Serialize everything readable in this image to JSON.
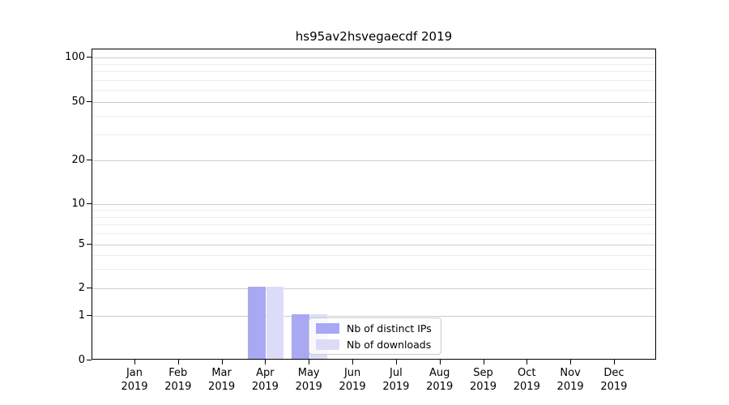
{
  "chart_data": {
    "type": "bar",
    "title": "hs95av2hsvegaecdf 2019",
    "categories": [
      "Jan",
      "Feb",
      "Mar",
      "Apr",
      "May",
      "Jun",
      "Jul",
      "Aug",
      "Sep",
      "Oct",
      "Nov",
      "Dec"
    ],
    "category_year": "2019",
    "series": [
      {
        "name": "Nb of distinct IPs",
        "color": "#a8a8f3",
        "values": [
          0,
          0,
          0,
          2,
          1,
          0,
          0,
          0,
          0,
          0,
          0,
          0
        ]
      },
      {
        "name": "Nb of downloads",
        "color": "#dcdcf8",
        "values": [
          0,
          0,
          0,
          2,
          1,
          0,
          0,
          0,
          0,
          0,
          0,
          0
        ]
      }
    ],
    "yticks": [
      0,
      1,
      2,
      5,
      10,
      20,
      50,
      100
    ],
    "y_minor_ticks": [
      3,
      4,
      6,
      7,
      8,
      9,
      30,
      40,
      60,
      70,
      80,
      90
    ],
    "scale": "symlog (linear 0-1, log above)",
    "ylim": [
      0,
      100
    ],
    "xlabel": "",
    "ylabel": "",
    "grid": true,
    "legend": {
      "position": "lower right inside plot",
      "entries": [
        "Nb of distinct IPs",
        "Nb of downloads"
      ]
    },
    "colors": {
      "major_grid": "#cdcdcd",
      "minor_grid": "#ececec",
      "spine": "#000000",
      "legend_border": "#cccccc",
      "legend_background": "rgba(255,255,255,0.8)"
    }
  }
}
